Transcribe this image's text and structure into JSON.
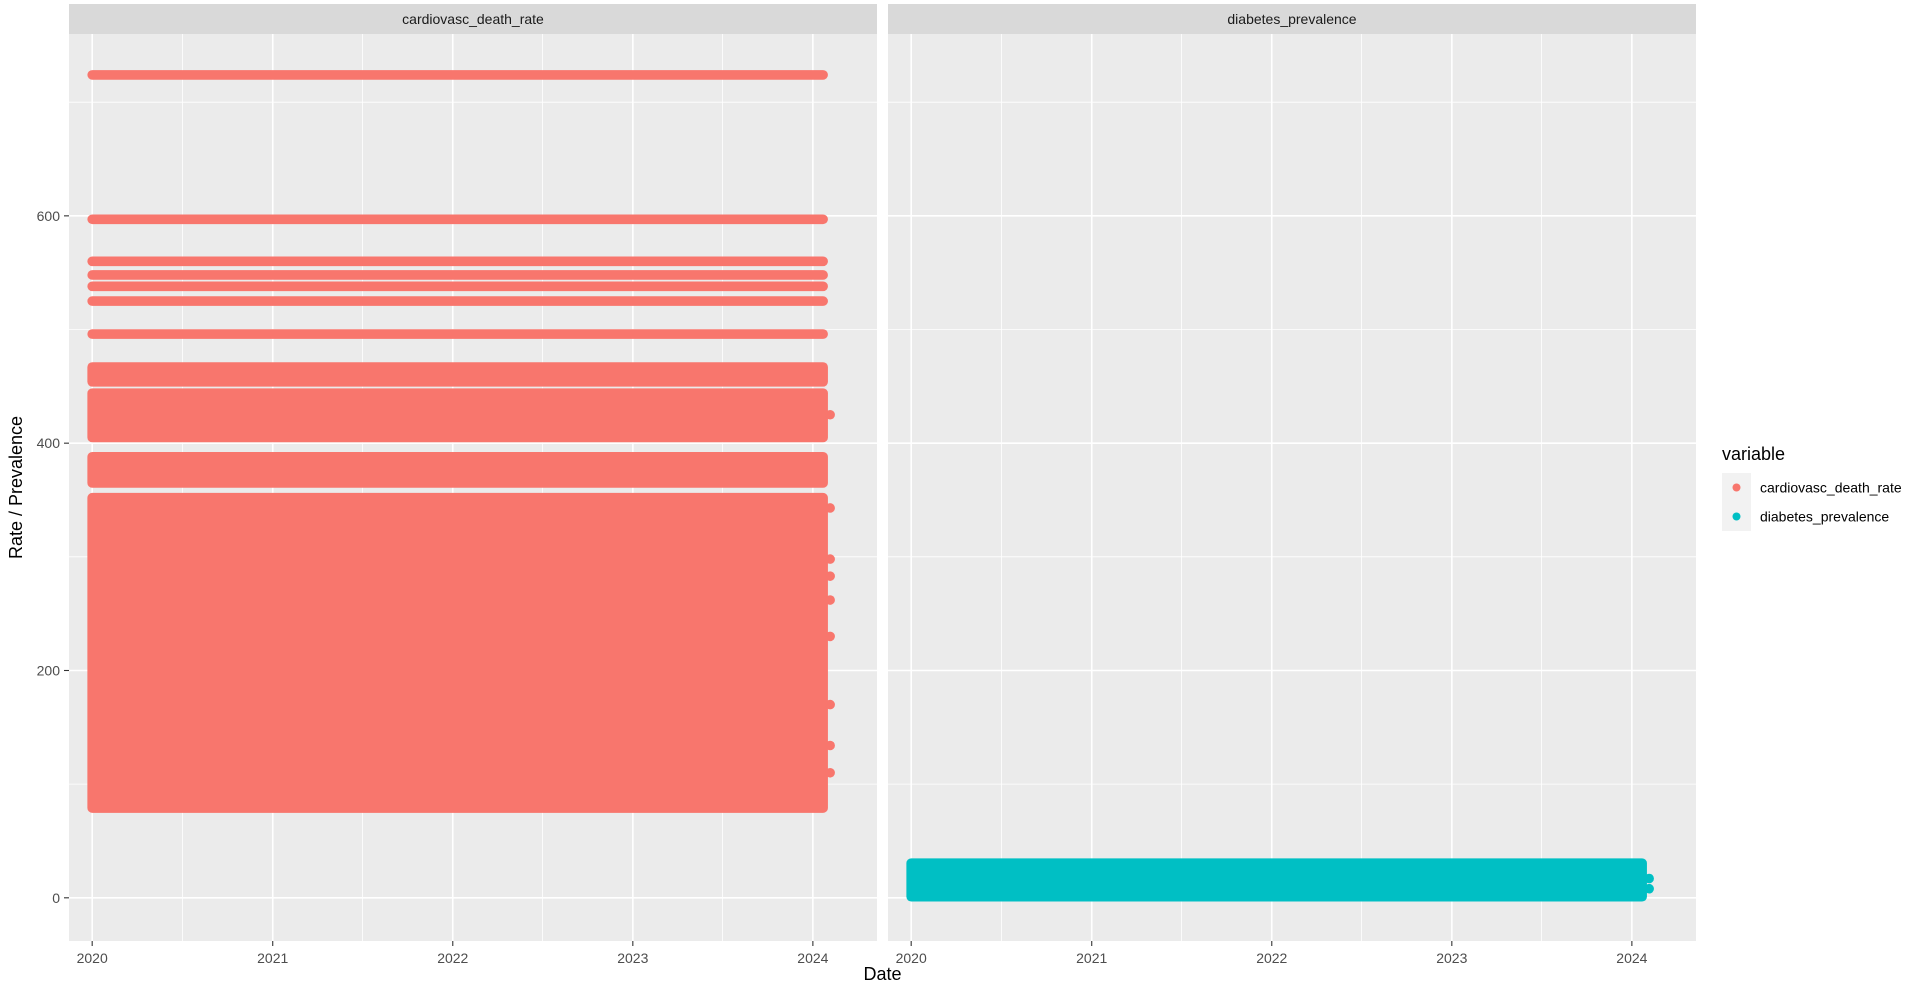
{
  "chart_data": {
    "type": "scatter",
    "xlabel": "Date",
    "ylabel": "Rate / Prevalence",
    "x_ticks": [
      "2020",
      "2021",
      "2022",
      "2023",
      "2024"
    ],
    "y_ticks": [
      "0",
      "200",
      "400",
      "600"
    ],
    "xlim": [
      "2019-11-15",
      "2024-05-10"
    ],
    "ylim": [
      -38,
      760
    ],
    "x_range": [
      "2020-01-01",
      "2024-02-05"
    ],
    "legend": {
      "title": "variable",
      "position": "right"
    },
    "facets": [
      {
        "strip": "cardiovasc_death_rate",
        "series": "cardiovasc_death_rate",
        "color": "#F8766D",
        "band_ranges": [
          [
            79,
            352
          ],
          [
            365,
            388
          ],
          [
            405,
            444
          ],
          [
            454,
            467
          ]
        ],
        "band_values": [
          496,
          525,
          538,
          548,
          560,
          597,
          724
        ],
        "outliers": [
          {
            "x": "2024-02-05",
            "y": 425
          },
          {
            "x": "2024-02-05",
            "y": 343
          },
          {
            "x": "2024-02-05",
            "y": 298
          },
          {
            "x": "2024-02-05",
            "y": 283
          },
          {
            "x": "2024-02-05",
            "y": 262
          },
          {
            "x": "2024-02-05",
            "y": 230
          },
          {
            "x": "2024-02-05",
            "y": 170
          },
          {
            "x": "2024-02-05",
            "y": 134
          },
          {
            "x": "2024-02-05",
            "y": 110
          }
        ]
      },
      {
        "strip": "diabetes_prevalence",
        "series": "diabetes_prevalence",
        "color": "#00BFC4",
        "band_ranges": [
          [
            1,
            30.5
          ]
        ],
        "band_values": [],
        "outliers": [
          {
            "x": "2024-02-05",
            "y": 17
          },
          {
            "x": "2024-02-05",
            "y": 8
          }
        ]
      }
    ],
    "series": [
      {
        "name": "cardiovasc_death_rate",
        "color": "#F8766D"
      },
      {
        "name": "diabetes_prevalence",
        "color": "#00BFC4"
      }
    ]
  }
}
